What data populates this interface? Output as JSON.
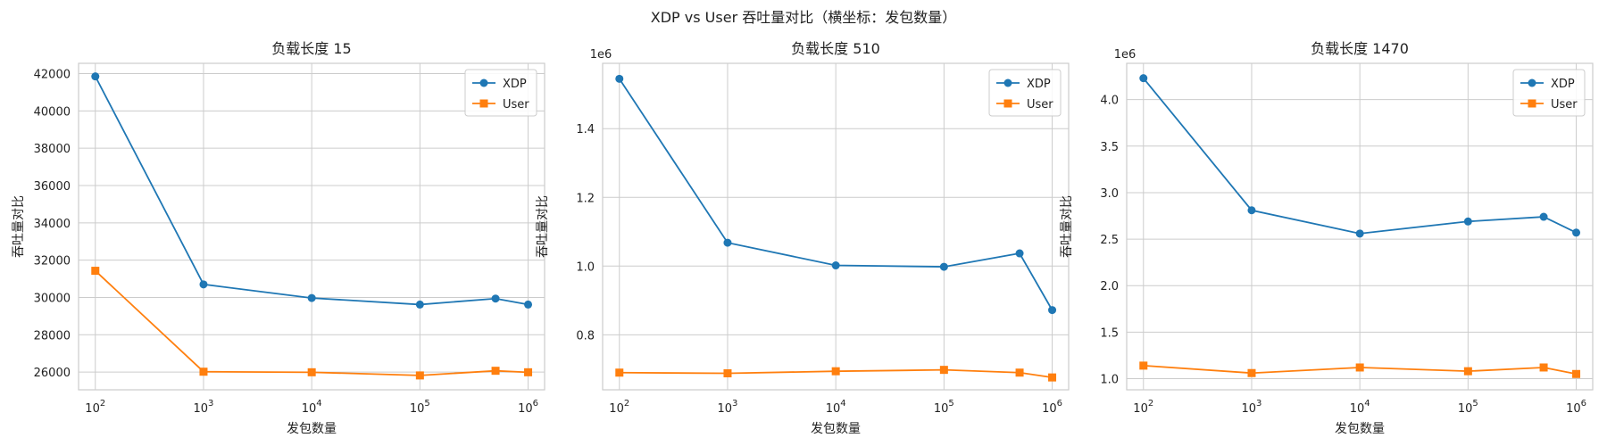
{
  "suptitle": "XDP vs User 吞吐量对比（横坐标：发包数量）",
  "colors": {
    "xdp": "#1f77b4",
    "user": "#ff7f0e",
    "grid": "#cccccc",
    "axis_frame": "#cccccc"
  },
  "chart_data": [
    {
      "type": "line",
      "title": "负载长度 15",
      "xlabel": "发包数量",
      "ylabel": "吞吐量对比",
      "xscale": "log",
      "x": [
        100,
        1000,
        10000,
        100000,
        500000,
        1000000
      ],
      "xlim": [
        70,
        1420000
      ],
      "xticks": [
        {
          "value": 100,
          "base": "10",
          "exp": "2"
        },
        {
          "value": 1000,
          "base": "10",
          "exp": "3"
        },
        {
          "value": 10000,
          "base": "10",
          "exp": "4"
        },
        {
          "value": 100000,
          "base": "10",
          "exp": "5"
        },
        {
          "value": 1000000,
          "base": "10",
          "exp": "6"
        }
      ],
      "ylim": [
        25050,
        42550
      ],
      "yticks": [
        26000,
        28000,
        30000,
        32000,
        34000,
        36000,
        38000,
        40000,
        42000
      ],
      "ytick_labels": [
        "26000",
        "28000",
        "30000",
        "32000",
        "34000",
        "36000",
        "38000",
        "40000",
        "42000"
      ],
      "offset_text": "",
      "grid": true,
      "legend": "upper right",
      "series": [
        {
          "name": "XDP",
          "marker": "circle",
          "color": "#1f77b4",
          "values": [
            41850,
            30700,
            29970,
            29620,
            29940,
            29620
          ]
        },
        {
          "name": "User",
          "marker": "square",
          "color": "#ff7f0e",
          "values": [
            31430,
            26020,
            25990,
            25820,
            26070,
            25990
          ]
        }
      ]
    },
    {
      "type": "line",
      "title": "负载长度 510",
      "xlabel": "发包数量",
      "ylabel": "吞吐量对比",
      "xscale": "log",
      "x": [
        100,
        1000,
        10000,
        100000,
        500000,
        1000000
      ],
      "xlim": [
        70,
        1420000
      ],
      "xticks": [
        {
          "value": 100,
          "base": "10",
          "exp": "2"
        },
        {
          "value": 1000,
          "base": "10",
          "exp": "3"
        },
        {
          "value": 10000,
          "base": "10",
          "exp": "4"
        },
        {
          "value": 100000,
          "base": "10",
          "exp": "5"
        },
        {
          "value": 1000000,
          "base": "10",
          "exp": "6"
        }
      ],
      "ylim": [
        640000,
        1590000
      ],
      "yticks": [
        800000,
        1000000,
        1200000,
        1400000
      ],
      "ytick_labels": [
        "0.8",
        "1.0",
        "1.2",
        "1.4"
      ],
      "offset_text": "1e6",
      "grid": true,
      "legend": "upper right",
      "series": [
        {
          "name": "XDP",
          "marker": "circle",
          "color": "#1f77b4",
          "values": [
            1545000,
            1068000,
            1002000,
            998000,
            1037000,
            872000
          ]
        },
        {
          "name": "User",
          "marker": "square",
          "color": "#ff7f0e",
          "values": [
            690000,
            688000,
            694000,
            698000,
            690000,
            676000
          ]
        }
      ]
    },
    {
      "type": "line",
      "title": "负载长度 1470",
      "xlabel": "发包数量",
      "ylabel": "吞吐量对比",
      "xscale": "log",
      "x": [
        100,
        1000,
        10000,
        100000,
        500000,
        1000000
      ],
      "xlim": [
        70,
        1420000
      ],
      "xticks": [
        {
          "value": 100,
          "base": "10",
          "exp": "2"
        },
        {
          "value": 1000,
          "base": "10",
          "exp": "3"
        },
        {
          "value": 10000,
          "base": "10",
          "exp": "4"
        },
        {
          "value": 100000,
          "base": "10",
          "exp": "5"
        },
        {
          "value": 1000000,
          "base": "10",
          "exp": "6"
        }
      ],
      "ylim": [
        880000,
        4390000
      ],
      "yticks": [
        1000000,
        1500000,
        2000000,
        2500000,
        3000000,
        3500000,
        4000000
      ],
      "ytick_labels": [
        "1.0",
        "1.5",
        "2.0",
        "2.5",
        "3.0",
        "3.5",
        "4.0"
      ],
      "offset_text": "1e6",
      "grid": true,
      "legend": "upper right",
      "series": [
        {
          "name": "XDP",
          "marker": "circle",
          "color": "#1f77b4",
          "values": [
            4230000,
            2810000,
            2560000,
            2690000,
            2740000,
            2570000
          ]
        },
        {
          "name": "User",
          "marker": "square",
          "color": "#ff7f0e",
          "values": [
            1140000,
            1060000,
            1120000,
            1080000,
            1120000,
            1050000
          ]
        }
      ]
    }
  ]
}
